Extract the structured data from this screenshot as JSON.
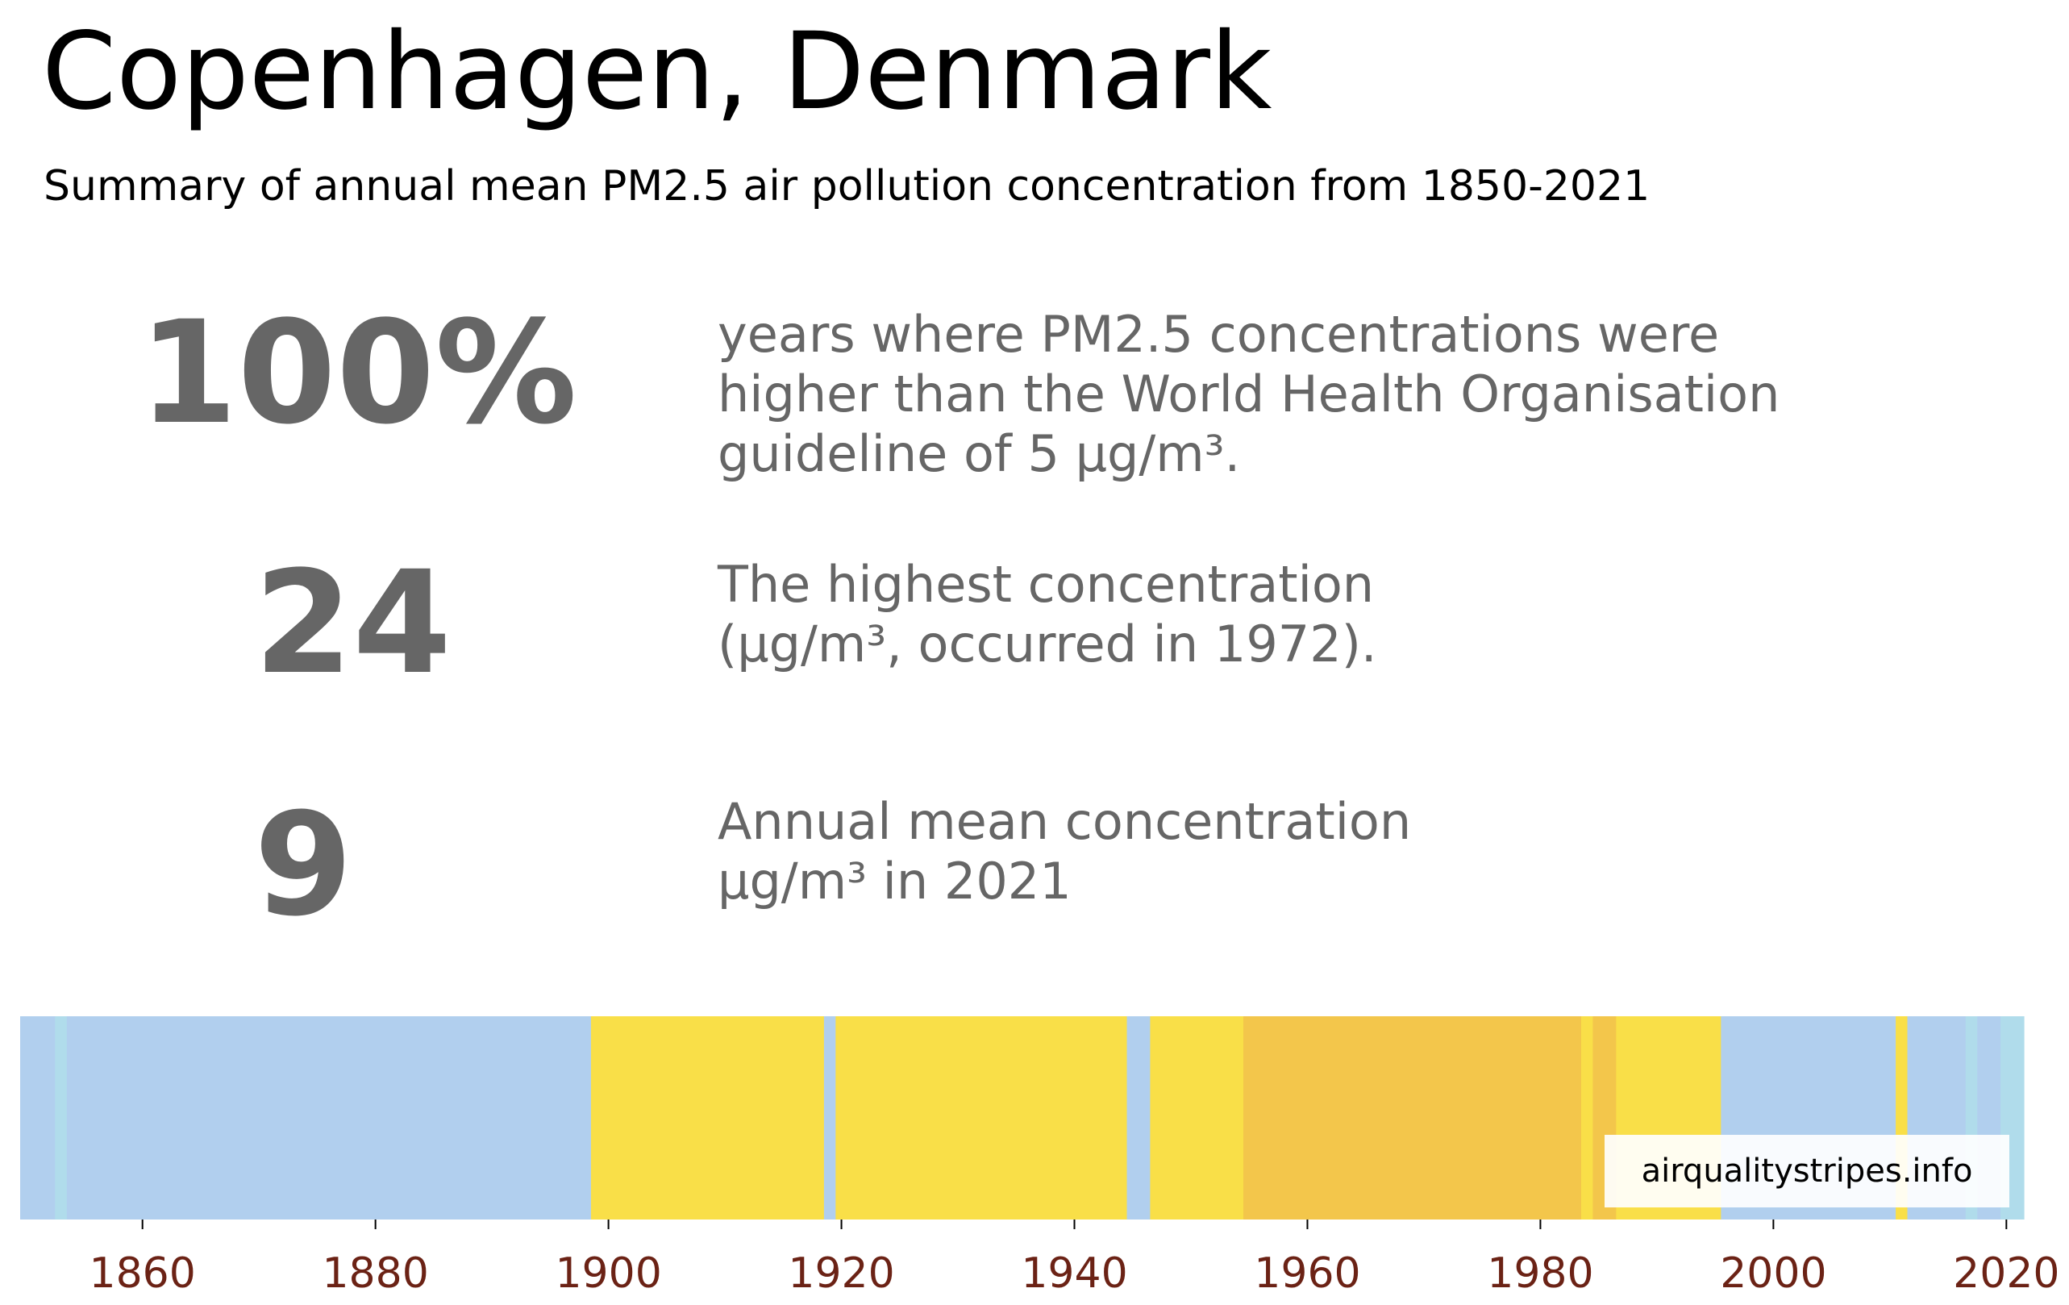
{
  "title": "Copenhagen, Denmark",
  "subtitle": "Summary of annual mean PM2.5 air pollution concentration from 1850-2021",
  "stats": [
    {
      "value": "100%",
      "lines": [
        "years where PM2.5 concentrations were",
        "higher than the World Health Organisation",
        "guideline of 5 μg/m³."
      ]
    },
    {
      "value": "24",
      "lines": [
        "The highest concentration",
        "(μg/m³, occurred in 1972)."
      ]
    },
    {
      "value": "9",
      "lines": [
        "Annual mean concentration",
        "μg/m³ in 2021"
      ]
    }
  ],
  "credit": "airqualitystripes.info",
  "colors": {
    "blue": "#b1cfee",
    "lightblue": "#b0dceb",
    "yellow": "#f9df48",
    "orange": "#f3c64b",
    "tick_label": "#6b2215",
    "stat_text": "#666666"
  },
  "chart_data": {
    "type": "heatmap",
    "xlim": [
      1849.5,
      2021.5
    ],
    "x_ticks": [
      1860,
      1880,
      1900,
      1920,
      1940,
      1960,
      1980,
      2000,
      2020
    ],
    "segments": [
      {
        "start": 1850,
        "end": 1852,
        "category": "blue"
      },
      {
        "start": 1853,
        "end": 1853,
        "category": "lightblue"
      },
      {
        "start": 1854,
        "end": 1898,
        "category": "blue"
      },
      {
        "start": 1899,
        "end": 1918,
        "category": "yellow"
      },
      {
        "start": 1919,
        "end": 1919,
        "category": "blue"
      },
      {
        "start": 1920,
        "end": 1944,
        "category": "yellow"
      },
      {
        "start": 1945,
        "end": 1946,
        "category": "blue"
      },
      {
        "start": 1947,
        "end": 1954,
        "category": "yellow"
      },
      {
        "start": 1955,
        "end": 1983,
        "category": "orange"
      },
      {
        "start": 1984,
        "end": 1984,
        "category": "yellow"
      },
      {
        "start": 1985,
        "end": 1986,
        "category": "orange"
      },
      {
        "start": 1987,
        "end": 1995,
        "category": "yellow"
      },
      {
        "start": 1996,
        "end": 2010,
        "category": "blue"
      },
      {
        "start": 2011,
        "end": 2011,
        "category": "yellow"
      },
      {
        "start": 2012,
        "end": 2016,
        "category": "blue"
      },
      {
        "start": 2017,
        "end": 2017,
        "category": "lightblue"
      },
      {
        "start": 2018,
        "end": 2019,
        "category": "blue"
      },
      {
        "start": 2020,
        "end": 2021,
        "category": "lightblue"
      }
    ]
  }
}
